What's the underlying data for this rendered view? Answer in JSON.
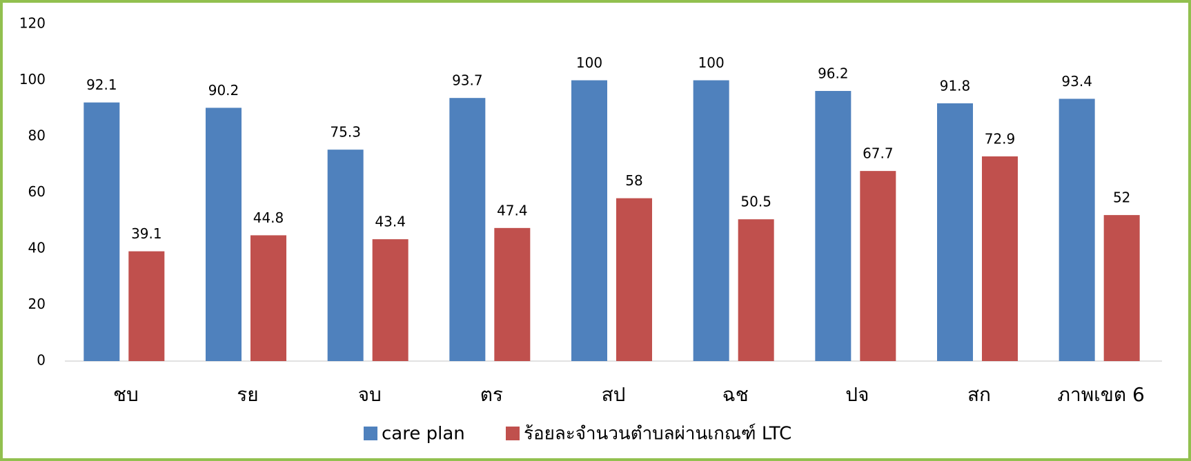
{
  "chart_data": {
    "type": "bar",
    "categories": [
      "ชบ",
      "รย",
      "จบ",
      "ตร",
      "สป",
      "ฉช",
      "ปจ",
      "สก",
      "ภาพเขต 6"
    ],
    "series": [
      {
        "name": "care plan",
        "color": "#4f81bd",
        "values": [
          92.1,
          90.2,
          75.3,
          93.7,
          100,
          100,
          96.2,
          91.8,
          93.4
        ]
      },
      {
        "name": "ร้อยละจำนวนตำบลผ่านเกณฑ์ LTC",
        "color": "#c0504d",
        "values": [
          39.1,
          44.8,
          43.4,
          47.4,
          58,
          50.5,
          67.7,
          72.9,
          52
        ]
      }
    ],
    "ylim": [
      0,
      120
    ],
    "yticks": [
      0,
      20,
      40,
      60,
      80,
      100,
      120
    ],
    "grid": false,
    "legend": "bottom"
  }
}
